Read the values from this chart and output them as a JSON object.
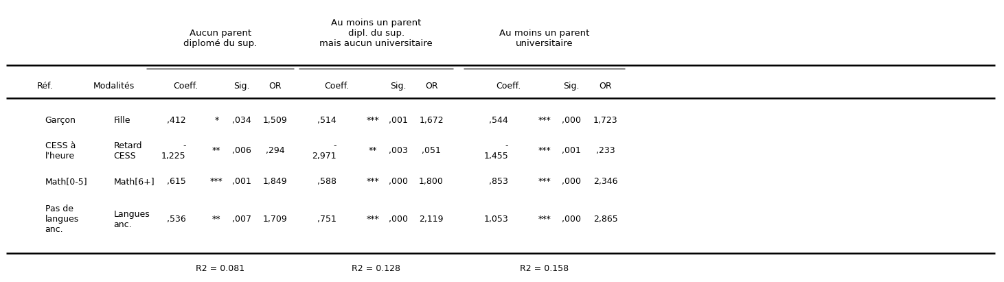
{
  "col_headers_group": [
    "Aucun parent\ndiplomé du sup.",
    "Au moins un parent\ndipl. du sup.\nmais aucun universitaire",
    "Au moins un parent\nuniversitaire"
  ],
  "rows": [
    {
      "ref": "Garçon",
      "mod": "Fille",
      "g1_coeff": ",412",
      "g1_star": "*",
      "g1_sig": ",034",
      "g1_or": "1,509",
      "g2_coeff": ",514",
      "g2_star": "***",
      "g2_sig": ",001",
      "g2_or": "1,672",
      "g3_coeff": ",544",
      "g3_star": "***",
      "g3_sig": ",000",
      "g3_or": "1,723"
    },
    {
      "ref": "CESS à\nl'heure",
      "mod": "Retard\nCESS",
      "g1_coeff": "-\n1,225",
      "g1_star": "**",
      "g1_sig": ",006",
      "g1_or": ",294",
      "g2_coeff": "-\n2,971",
      "g2_star": "**",
      "g2_sig": ",003",
      "g2_or": ",051",
      "g3_coeff": "-\n1,455",
      "g3_star": "***",
      "g3_sig": ",001",
      "g3_or": ",233"
    },
    {
      "ref": "Math[0-5]",
      "mod": "Math[6+]",
      "g1_coeff": ",615",
      "g1_star": "***",
      "g1_sig": ",001",
      "g1_or": "1,849",
      "g2_coeff": ",588",
      "g2_star": "***",
      "g2_sig": ",000",
      "g2_or": "1,800",
      "g3_coeff": ",853",
      "g3_star": "***",
      "g3_sig": ",000",
      "g3_or": "2,346"
    },
    {
      "ref": "Pas de\nlangues\nanc.",
      "mod": "Langues\nanc.",
      "g1_coeff": ",536",
      "g1_star": "**",
      "g1_sig": ",007",
      "g1_or": "1,709",
      "g2_coeff": ",751",
      "g2_star": "***",
      "g2_sig": ",000",
      "g2_or": "2,119",
      "g3_coeff": "1,053",
      "g3_star": "***",
      "g3_sig": ",000",
      "g3_or": "2,865"
    }
  ],
  "r2": [
    "R2 = 0.081",
    "R2 = 0.128",
    "R2 = 0.158"
  ],
  "figsize": [
    14.62,
    4.11
  ],
  "dpi": 100
}
